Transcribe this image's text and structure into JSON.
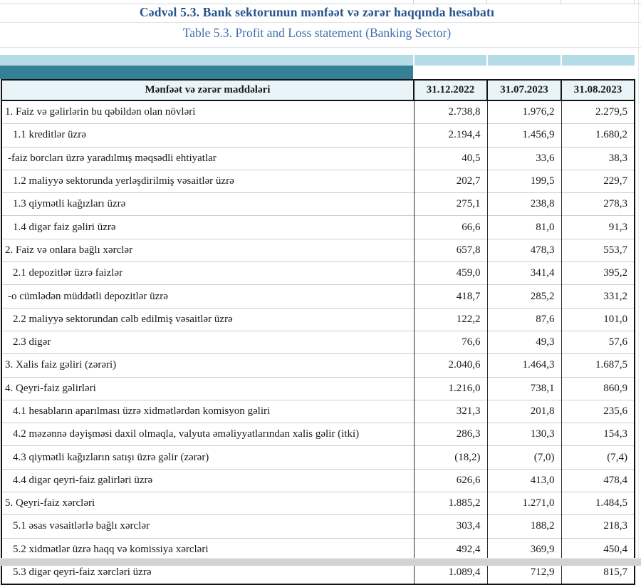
{
  "titles": {
    "az": "Cədvəl 5.3. Bank sektorunun mənfəət və zərər haqqında hesabatı",
    "en": "Table 5.3. Profit and Loss statement (Banking Sector)"
  },
  "colors": {
    "title_az": "#26538c",
    "title_en": "#3f70ad",
    "band_light": "#b5dbe6",
    "band_teal": "#348196",
    "header_bg": "#e9f4f8",
    "row_divider": "#c9ced1",
    "bottom_bar": "#d1d2d4"
  },
  "table": {
    "header": {
      "label_col": "Mənfəət və zərər maddələri",
      "date_cols": [
        "31.12.2022",
        "31.07.2023",
        "31.08.2023"
      ]
    },
    "rows": [
      {
        "label": "1. Faiz və gəlirlərin bu qəbildən olan növləri",
        "indent": 0,
        "values": [
          "2.738,8",
          "1.976,2",
          "2.279,5"
        ]
      },
      {
        "label": "1.1 kreditlər üzrə",
        "indent": 2,
        "values": [
          "2.194,4",
          "1.456,9",
          "1.680,2"
        ]
      },
      {
        "label": "-faiz borcları üzrə yaradılmış məqsədli ehtiyatlar",
        "indent": 1,
        "values": [
          "40,5",
          "33,6",
          "38,3"
        ]
      },
      {
        "label": "1.2 maliyyə sektorunda yerləşdirilmiş vəsaitlər üzrə",
        "indent": 2,
        "values": [
          "202,7",
          "199,5",
          "229,7"
        ]
      },
      {
        "label": "1.3 qiymətli kağızları üzrə",
        "indent": 2,
        "values": [
          "275,1",
          "238,8",
          "278,3"
        ]
      },
      {
        "label": "1.4 digər faiz gəliri üzrə",
        "indent": 2,
        "values": [
          "66,6",
          "81,0",
          "91,3"
        ]
      },
      {
        "label": "2. Faiz və onlara bağlı xərclər",
        "indent": 0,
        "values": [
          "657,8",
          "478,3",
          "553,7"
        ]
      },
      {
        "label": "2.1 depozitlər üzrə faizlər",
        "indent": 2,
        "values": [
          "459,0",
          "341,4",
          "395,2"
        ]
      },
      {
        "label": "-o cümlədən müddətli depozitlər üzrə",
        "indent": 1,
        "values": [
          "418,7",
          "285,2",
          "331,2"
        ]
      },
      {
        "label": "2.2 maliyyə sektorundan cəlb edilmiş vəsaitlər üzrə",
        "indent": 2,
        "values": [
          "122,2",
          "87,6",
          "101,0"
        ]
      },
      {
        "label": "2.3 digər",
        "indent": 2,
        "values": [
          "76,6",
          "49,3",
          "57,6"
        ]
      },
      {
        "label": "3. Xalis faiz gəliri (zərəri)",
        "indent": 0,
        "values": [
          "2.040,6",
          "1.464,3",
          "1.687,5"
        ]
      },
      {
        "label": "4. Qeyri-faiz gəlirləri",
        "indent": 0,
        "values": [
          "1.216,0",
          "738,1",
          "860,9"
        ]
      },
      {
        "label": "4.1 hesabların aparılması üzrə xidmətlərdən komisyon gəliri",
        "indent": 2,
        "values": [
          "321,3",
          "201,8",
          "235,6"
        ]
      },
      {
        "label": "4.2 məzənnə dəyişməsi daxil olmaqla, valyuta əməliyyatlarından xalis gəlir (itki)",
        "indent": 2,
        "values": [
          "286,3",
          "130,3",
          "154,3"
        ]
      },
      {
        "label": "4.3 qiymətli kağızların satışı üzrə gəlir (zərər)",
        "indent": 2,
        "values": [
          "(18,2)",
          "(7,0)",
          "(7,4)"
        ]
      },
      {
        "label": "4.4 digər qeyri-faiz gəlirləri üzrə",
        "indent": 2,
        "values": [
          "626,6",
          "413,0",
          "478,4"
        ]
      },
      {
        "label": "5. Qeyri-faiz xərcləri",
        "indent": 0,
        "values": [
          "1.885,2",
          "1.271,0",
          "1.484,5"
        ]
      },
      {
        "label": "5.1 əsas vəsaitlərlə bağlı xərclər",
        "indent": 2,
        "values": [
          "303,4",
          "188,2",
          "218,3"
        ]
      },
      {
        "label": "5.2 xidmətlər üzrə haqq və komissiya xərcləri",
        "indent": 2,
        "values": [
          "492,4",
          "369,9",
          "450,4"
        ]
      },
      {
        "label": "5.3 digər qeyri-faiz xərcləri üzrə",
        "indent": 2,
        "values": [
          "1.089,4",
          "712,9",
          "815,7"
        ]
      }
    ]
  }
}
